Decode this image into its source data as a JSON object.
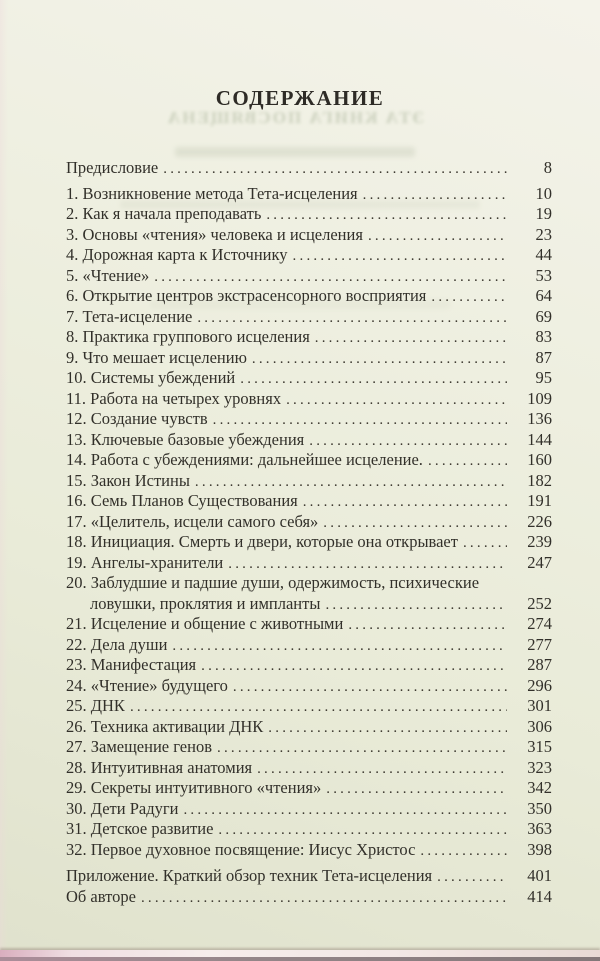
{
  "page": {
    "title": "СОДЕРЖАНИЕ"
  },
  "ghost": {
    "line1": "ЭТА КНИГА ПОСВЯЩЕНА"
  },
  "colors": {
    "paper": "#ecedde",
    "text": "#32302a",
    "photo_edge_pink": "#e9d2d8"
  },
  "toc": {
    "entries": [
      {
        "label": "Предисловие",
        "page": "8",
        "space_after": true
      },
      {
        "label": "1. Возникновение метода Тета-исцеления",
        "page": "10"
      },
      {
        "label": "2. Как я начала преподавать",
        "page": "19"
      },
      {
        "label": "3. Основы «чтения» человека и исцеления",
        "page": "23"
      },
      {
        "label": "4. Дорожная карта к Источнику",
        "page": "44"
      },
      {
        "label": "5. «Чтение»",
        "page": "53"
      },
      {
        "label": "6. Открытие центров экстрасенсорного восприятия",
        "page": "64"
      },
      {
        "label": "7. Тета-исцеление",
        "page": "69"
      },
      {
        "label": "8. Практика группового исцеления",
        "page": "83"
      },
      {
        "label": "9. Что мешает исцелению",
        "page": "87"
      },
      {
        "label": "10. Системы убеждений",
        "page": "95"
      },
      {
        "label": "11. Работа на четырех уровнях",
        "page": "109"
      },
      {
        "label": "12. Создание чувств",
        "page": "136"
      },
      {
        "label": "13. Ключевые базовые убеждения",
        "page": "144"
      },
      {
        "label": "14. Работа с убеждениями: дальнейшее исцеление.",
        "page": "160"
      },
      {
        "label": "15. Закон Истины",
        "page": "182"
      },
      {
        "label": "16. Семь Планов Существования",
        "page": "191"
      },
      {
        "label": "17. «Целитель, исцели самого себя»",
        "page": "226"
      },
      {
        "label": "18. Инициация. Смерть и двери, которые она открывает",
        "page": "239"
      },
      {
        "label": "19. Ангелы-хранители",
        "page": "247"
      },
      {
        "label": "20. Заблудшие и падшие души, одержимость, психические",
        "label2": "ловушки, проклятия и импланты",
        "page": "252"
      },
      {
        "label": "21. Исцеление и общение с животными",
        "page": "274"
      },
      {
        "label": "22. Дела души",
        "page": "277"
      },
      {
        "label": "23. Манифестация",
        "page": "287"
      },
      {
        "label": "24. «Чтение» будущего",
        "page": "296"
      },
      {
        "label": "25. ДНК",
        "page": "301"
      },
      {
        "label": "26. Техника активации ДНК",
        "page": "306"
      },
      {
        "label": "27. Замещение генов",
        "page": "315"
      },
      {
        "label": "28. Интуитивная анатомия",
        "page": "323"
      },
      {
        "label": "29. Секреты интуитивного «чтения»",
        "page": "342"
      },
      {
        "label": "30. Дети Радуги",
        "page": "350"
      },
      {
        "label": "31. Детское развитие",
        "page": "363"
      },
      {
        "label": "32. Первое духовное посвящение: Иисус Христос",
        "page": "398"
      },
      {
        "label": "Приложение. Краткий обзор техник Тета-исцеления",
        "page": "401",
        "space_before": true
      },
      {
        "label": "Об авторе",
        "page": "414"
      }
    ]
  }
}
